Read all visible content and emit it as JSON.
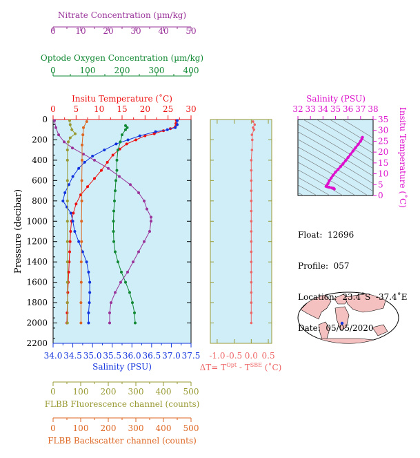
{
  "colors": {
    "nitrate": "#993399",
    "oxygen": "#118833",
    "temperature": "#ee1111",
    "salinity": "#1133dd",
    "fluorescence": "#999933",
    "backscatter": "#dd6622",
    "delta_t": "#ee6666",
    "ts_salinity_axis": "#dd11cc",
    "panel_bg": "#cfeef8",
    "map_land": "#f4c0c0"
  },
  "labels": {
    "nitrate_axis": "Nitrate Concentration (µm/kg)",
    "oxygen_axis": "Optode Oxygen Concentration (µm/kg)",
    "temperature_axis": "Insitu Temperature (˚C)",
    "salinity_axis": "Salinity (PSU)",
    "pressure_axis": "Pressure (decibar)",
    "fluorescence_axis": "FLBB Fluorescence channel (counts)",
    "backscatter_axis": "FLBB Backscatter channel (counts)",
    "delta_t_axis_prefix": "ΔT= T",
    "delta_t_sup1": "Opt",
    "delta_t_mid": " - T",
    "delta_t_sup2": "SBE",
    "delta_t_suffix": " (˚C)",
    "ts_top_axis": "Salinity (PSU)",
    "ts_right_axis": "Insitu Temperature (˚C)"
  },
  "info": {
    "float": "Float:  12696",
    "profile": "Profile:  057",
    "location": "Location:  23.4˚S  -37.4˚E",
    "date": "Date:  05/05/2020"
  },
  "ticks": {
    "nitrate": [
      "0",
      "10",
      "20",
      "30",
      "40",
      "50"
    ],
    "oxygen": [
      "0",
      "100",
      "200",
      "300",
      "400"
    ],
    "temperature": [
      "0",
      "5",
      "10",
      "15",
      "20",
      "25",
      "30"
    ],
    "salinity": [
      "34.0",
      "34.5",
      "35.0",
      "35.5",
      "36.0",
      "36.5",
      "37.0",
      "37.5"
    ],
    "pressure": [
      "0",
      "200",
      "400",
      "600",
      "800",
      "1000",
      "1200",
      "1400",
      "1600",
      "1800",
      "2000",
      "2200"
    ],
    "fluorescence": [
      "0",
      "100",
      "200",
      "300",
      "400",
      "500"
    ],
    "backscatter": [
      "0",
      "100",
      "200",
      "300",
      "400",
      "500"
    ],
    "delta_t": [
      "-1.0",
      "-0.5",
      "0.0",
      "0.5"
    ],
    "ts_salinity": [
      "32",
      "33",
      "34",
      "35",
      "36",
      "37",
      "38"
    ],
    "ts_temperature": [
      "0",
      "5",
      "10",
      "15",
      "20",
      "25",
      "30",
      "35"
    ]
  },
  "chart_data": [
    {
      "type": "line",
      "title": "",
      "ylabel": "Pressure (decibar)",
      "ylim": [
        2200,
        0
      ],
      "series": [
        {
          "name": "Insitu Temperature (˚C)",
          "xlim": [
            0,
            30
          ],
          "points": [
            [
              26.8,
              10
            ],
            [
              26.7,
              40
            ],
            [
              26.6,
              70
            ],
            [
              25.5,
              90
            ],
            [
              24,
              110
            ],
            [
              22,
              140
            ],
            [
              20,
              160
            ],
            [
              18,
              200
            ],
            [
              16,
              240
            ],
            [
              14.5,
              290
            ],
            [
              13,
              350
            ],
            [
              11.8,
              420
            ],
            [
              10.5,
              500
            ],
            [
              9,
              580
            ],
            [
              7.5,
              660
            ],
            [
              6,
              740
            ],
            [
              5,
              830
            ],
            [
              4.4,
              920
            ],
            [
              4,
              1000
            ],
            [
              3.8,
              1100
            ],
            [
              3.7,
              1200
            ],
            [
              3.6,
              1300
            ],
            [
              3.5,
              1400
            ],
            [
              3.4,
              1500
            ],
            [
              3.3,
              1600
            ],
            [
              3.2,
              1700
            ],
            [
              3.1,
              1800
            ],
            [
              3.05,
              1900
            ],
            [
              3.0,
              2000
            ]
          ]
        },
        {
          "name": "Salinity (PSU)",
          "xlim": [
            34,
            37.5
          ],
          "points": [
            [
              37.15,
              10
            ],
            [
              37.15,
              50
            ],
            [
              37.1,
              80
            ],
            [
              36.9,
              100
            ],
            [
              36.6,
              120
            ],
            [
              36.2,
              160
            ],
            [
              35.9,
              200
            ],
            [
              35.6,
              240
            ],
            [
              35.3,
              300
            ],
            [
              35.0,
              360
            ],
            [
              34.8,
              420
            ],
            [
              34.65,
              480
            ],
            [
              34.5,
              560
            ],
            [
              34.4,
              640
            ],
            [
              34.3,
              720
            ],
            [
              34.25,
              800
            ],
            [
              34.35,
              860
            ],
            [
              34.45,
              920
            ],
            [
              34.5,
              1000
            ],
            [
              34.55,
              1100
            ],
            [
              34.65,
              1200
            ],
            [
              34.75,
              1300
            ],
            [
              34.85,
              1400
            ],
            [
              34.9,
              1500
            ],
            [
              34.93,
              1600
            ],
            [
              34.93,
              1700
            ],
            [
              34.92,
              1800
            ],
            [
              34.9,
              1900
            ],
            [
              34.9,
              2000
            ]
          ]
        },
        {
          "name": "Optode Oxygen Concentration (µm/kg)",
          "xlim": [
            0,
            400
          ],
          "points": [
            [
              210,
              60
            ],
            [
              215,
              80
            ],
            [
              210,
              100
            ],
            [
              200,
              150
            ],
            [
              195,
              220
            ],
            [
              188,
              300
            ],
            [
              185,
              400
            ],
            [
              185,
              500
            ],
            [
              182,
              600
            ],
            [
              180,
              700
            ],
            [
              178,
              800
            ],
            [
              176,
              900
            ],
            [
              175,
              1000
            ],
            [
              175,
              1100
            ],
            [
              176,
              1200
            ],
            [
              180,
              1300
            ],
            [
              188,
              1400
            ],
            [
              198,
              1500
            ],
            [
              210,
              1600
            ],
            [
              222,
              1700
            ],
            [
              230,
              1800
            ],
            [
              236,
              1900
            ],
            [
              238,
              2000
            ]
          ]
        },
        {
          "name": "Nitrate Concentration (µm/kg)",
          "xlim": [
            0,
            50
          ],
          "points": [
            [
              0.5,
              10
            ],
            [
              1,
              80
            ],
            [
              2,
              150
            ],
            [
              4,
              220
            ],
            [
              7,
              280
            ],
            [
              11,
              340
            ],
            [
              15,
              400
            ],
            [
              20,
              480
            ],
            [
              24,
              560
            ],
            [
              28,
              640
            ],
            [
              31,
              720
            ],
            [
              33,
              800
            ],
            [
              34,
              880
            ],
            [
              35.5,
              960
            ],
            [
              35.5,
              1000
            ],
            [
              35,
              1100
            ],
            [
              33,
              1200
            ],
            [
              31,
              1300
            ],
            [
              29,
              1400
            ],
            [
              27,
              1500
            ],
            [
              24.5,
              1600
            ],
            [
              22.5,
              1700
            ],
            [
              21,
              1800
            ],
            [
              20.5,
              1900
            ],
            [
              20.5,
              2000
            ]
          ]
        },
        {
          "name": "FLBB Fluorescence channel (counts)",
          "xlim": [
            0,
            500
          ],
          "points": [
            [
              60,
              10
            ],
            [
              62,
              50
            ],
            [
              68,
              100
            ],
            [
              80,
              140
            ],
            [
              62,
              180
            ],
            [
              55,
              220
            ],
            [
              52,
              300
            ],
            [
              52,
              400
            ],
            [
              52,
              600
            ],
            [
              52,
              800
            ],
            [
              52,
              1000
            ],
            [
              52,
              1200
            ],
            [
              52,
              1400
            ],
            [
              52,
              1600
            ],
            [
              52,
              1800
            ],
            [
              52,
              2000
            ]
          ]
        },
        {
          "name": "FLBB Backscatter channel (counts)",
          "xlim": [
            0,
            500
          ],
          "points": [
            [
              122,
              20
            ],
            [
              110,
              80
            ],
            [
              108,
              150
            ],
            [
              105,
              250
            ],
            [
              105,
              400
            ],
            [
              104,
              600
            ],
            [
              104,
              800
            ],
            [
              103,
              1000
            ],
            [
              103,
              1200
            ],
            [
              102,
              1400
            ],
            [
              102,
              1600
            ],
            [
              101,
              1800
            ],
            [
              101,
              2000
            ]
          ]
        }
      ]
    },
    {
      "type": "line",
      "xlabel": "ΔT= TOpt - TSBE (˚C)",
      "xlim": [
        -1.2,
        0.6
      ],
      "ylim": [
        2200,
        0
      ],
      "points": [
        [
          0.05,
          20
        ],
        [
          0.1,
          50
        ],
        [
          0.05,
          80
        ],
        [
          0.08,
          100
        ],
        [
          0.02,
          150
        ],
        [
          0.03,
          200
        ],
        [
          0.02,
          300
        ],
        [
          0.0,
          400
        ],
        [
          0.0,
          500
        ],
        [
          0.0,
          600
        ],
        [
          0.0,
          700
        ],
        [
          0.0,
          800
        ],
        [
          0.0,
          900
        ],
        [
          0.0,
          1000
        ],
        [
          0.0,
          1100
        ],
        [
          0.0,
          1200
        ],
        [
          0.0,
          1300
        ],
        [
          0.0,
          1400
        ],
        [
          0.0,
          1500
        ],
        [
          0.0,
          1600
        ],
        [
          0.0,
          1700
        ],
        [
          0.0,
          1800
        ],
        [
          0.0,
          1900
        ],
        [
          0.0,
          2000
        ]
      ]
    },
    {
      "type": "scatter",
      "xlabel": "Salinity (PSU)",
      "ylabel": "Insitu Temperature (˚C)",
      "xlim": [
        32,
        38
      ],
      "ylim": [
        0,
        35
      ],
      "points": [
        [
          37.15,
          26.8
        ],
        [
          37.1,
          26
        ],
        [
          37,
          25
        ],
        [
          36.8,
          23.5
        ],
        [
          36.6,
          22
        ],
        [
          36.4,
          20.5
        ],
        [
          36.2,
          19
        ],
        [
          36,
          17.5
        ],
        [
          35.8,
          16
        ],
        [
          35.6,
          14.6
        ],
        [
          35.4,
          13.3
        ],
        [
          35.2,
          12
        ],
        [
          35,
          10.8
        ],
        [
          34.8,
          9.3
        ],
        [
          34.65,
          8
        ],
        [
          34.5,
          6.8
        ],
        [
          34.4,
          5.5
        ],
        [
          34.3,
          4.6
        ],
        [
          34.25,
          4.2
        ],
        [
          34.35,
          4
        ],
        [
          34.5,
          3.8
        ],
        [
          34.7,
          3.5
        ],
        [
          34.85,
          3.3
        ],
        [
          34.9,
          3
        ]
      ]
    }
  ]
}
